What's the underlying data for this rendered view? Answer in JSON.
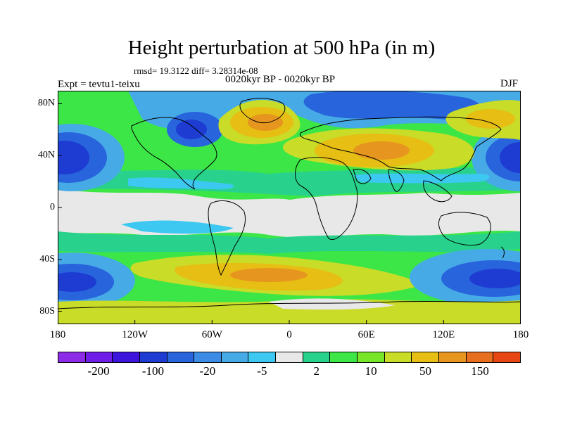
{
  "title": "Height perturbation at 500 hPa (in m)",
  "stats": "rmsd= 19.3122 diff= 3.28314e-08",
  "experiment": "Expt = tevtu1-teixu",
  "period": "0020kyr BP - 0020kyr BP",
  "season": "DJF",
  "map": {
    "projection": "cylindrical equidistant",
    "lon_range": [
      -180,
      180
    ],
    "lat_range": [
      -90,
      90
    ],
    "x_ticks": [
      {
        "lon": -180,
        "label": "180"
      },
      {
        "lon": -120,
        "label": "120W"
      },
      {
        "lon": -60,
        "label": "60W"
      },
      {
        "lon": 0,
        "label": "0"
      },
      {
        "lon": 60,
        "label": "60E"
      },
      {
        "lon": 120,
        "label": "120E"
      },
      {
        "lon": 180,
        "label": "180"
      }
    ],
    "y_ticks": [
      {
        "lat": 80,
        "label": "80N"
      },
      {
        "lat": 40,
        "label": "40N"
      },
      {
        "lat": 0,
        "label": "0"
      },
      {
        "lat": -40,
        "label": "40S"
      },
      {
        "lat": -80,
        "label": "80S"
      }
    ]
  },
  "colorbar": {
    "colors": [
      "#8c2ce6",
      "#6e1ee6",
      "#3c14dc",
      "#1e3cd2",
      "#2864dc",
      "#3c8ce6",
      "#46aae6",
      "#3cc8f0",
      "#e8e8e8",
      "#28d28c",
      "#3ce646",
      "#78e628",
      "#c8dc28",
      "#e6be14",
      "#e6961e",
      "#e66e1e",
      "#e64614"
    ],
    "labels": [
      {
        "text": "-200",
        "boundary": 1
      },
      {
        "text": "-100",
        "boundary": 3
      },
      {
        "text": "-20",
        "boundary": 5
      },
      {
        "text": "-5",
        "boundary": 7
      },
      {
        "text": "2",
        "boundary": 9
      },
      {
        "text": "10",
        "boundary": 11
      },
      {
        "text": "50",
        "boundary": 13
      },
      {
        "text": "150",
        "boundary": 15
      }
    ]
  }
}
